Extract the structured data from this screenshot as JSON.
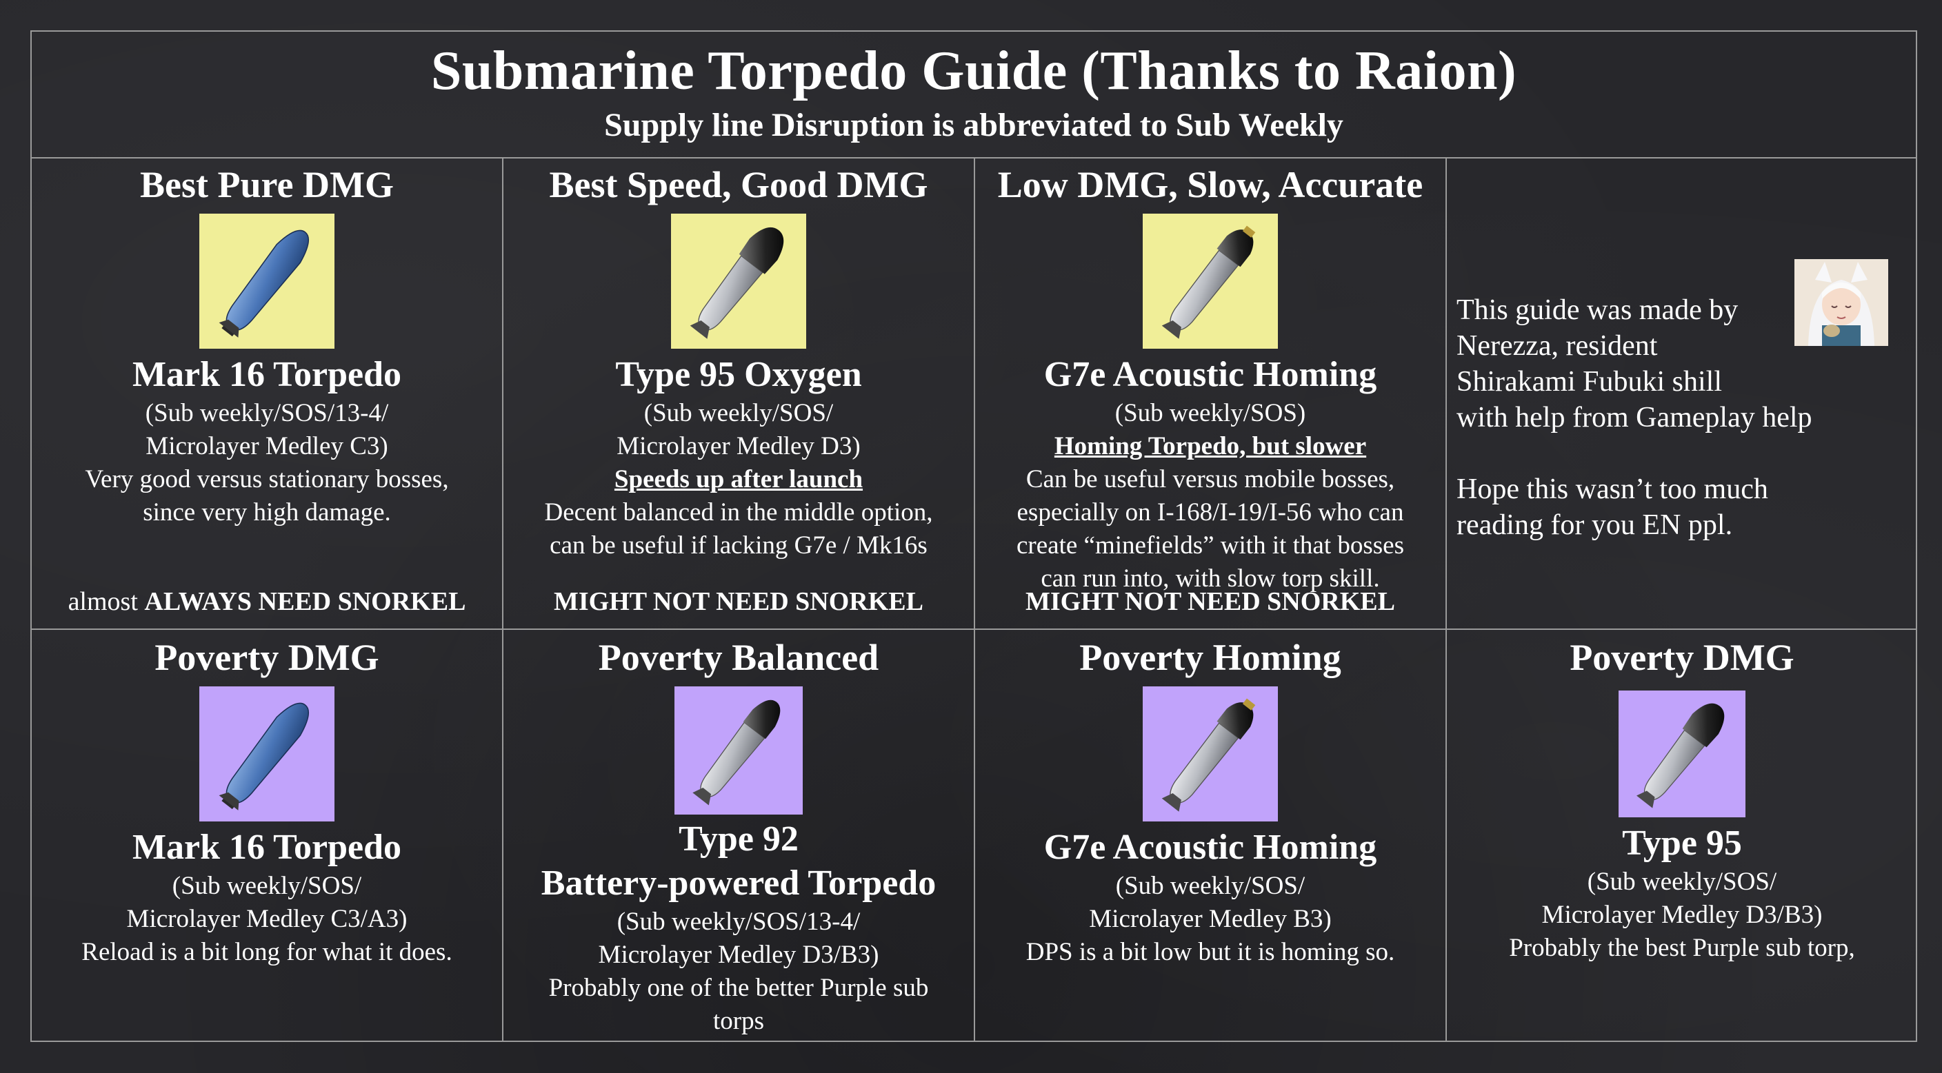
{
  "header": {
    "title": "Submarine Torpedo Guide (Thanks to Raion)",
    "subtitle": "Supply line Disruption is abbreviated to Sub Weekly"
  },
  "top_row": [
    {
      "heading": "Best Pure DMG",
      "image": "mark16-torpedo-icon",
      "name": "Mark 16 Torpedo",
      "lines": [
        "(Sub weekly/SOS/13-4/",
        "Microlayer Medley C3)",
        "Very good versus stationary bosses,",
        "since very high damage."
      ],
      "snorkel_prefix": "almost ",
      "snorkel": "ALWAYS NEED SNORKEL"
    },
    {
      "heading": "Best Speed, Good DMG",
      "image": "type95-oxygen-torpedo-icon",
      "name": "Type 95 Oxygen",
      "lines": [
        "(Sub weekly/SOS/",
        "Microlayer Medley D3)"
      ],
      "underlined": "Speeds up after launch",
      "lines2": [
        "Decent balanced in the middle option,",
        "can be useful if lacking G7e / Mk16s"
      ],
      "snorkel": "MIGHT NOT NEED SNORKEL"
    },
    {
      "heading": "Low DMG, Slow, Accurate",
      "image": "g7e-acoustic-homing-torpedo-icon",
      "name": "G7e Acoustic Homing",
      "lines": [
        "(Sub weekly/SOS)"
      ],
      "underlined": "Homing Torpedo, but slower",
      "lines2": [
        "Can be useful versus mobile bosses,",
        "especially on I-168/I-19/I-56 who can",
        "create “minefields” with it that bosses",
        "can run into, with slow torp skill."
      ],
      "snorkel": "MIGHT NOT NEED SNORKEL"
    }
  ],
  "note": {
    "lines": [
      "This guide was made by",
      "Nerezza, resident",
      "Shirakami Fubuki shill",
      "with help from Gameplay help"
    ],
    "lines2": [
      "Hope this wasn’t too much",
      "reading for you EN ppl."
    ]
  },
  "bottom_row": [
    {
      "heading": "Poverty DMG",
      "image": "mark16-torpedo-icon",
      "name_lines": [
        "Mark 16 Torpedo"
      ],
      "lines": [
        "(Sub weekly/SOS/",
        "Microlayer Medley C3/A3)",
        "Reload is a bit long for what it does."
      ]
    },
    {
      "heading": "Poverty Balanced",
      "image": "type92-battery-torpedo-icon",
      "name_lines": [
        "Type 92",
        "Battery-powered Torpedo"
      ],
      "lines": [
        "(Sub weekly/SOS/13-4/",
        "Microlayer Medley D3/B3)",
        "Probably one of the better Purple sub",
        "torps"
      ]
    },
    {
      "heading": "Poverty Homing",
      "image": "g7e-acoustic-homing-torpedo-icon",
      "name_lines": [
        "G7e Acoustic Homing"
      ],
      "lines": [
        "(Sub weekly/SOS/",
        "Microlayer Medley B3)",
        "DPS is a bit low but it is homing so."
      ]
    },
    {
      "heading": "Poverty DMG",
      "image": "type95-torpedo-icon",
      "name_lines": [
        "Type 95"
      ],
      "lines": [
        "(Sub weekly/SOS/",
        "Microlayer Medley D3/B3)",
        "Probably the best Purple sub torp,"
      ]
    }
  ],
  "colors": {
    "background": "#27272b",
    "grid_line": "#9a9a9a",
    "rare_tile": "#f0ee98",
    "elite_tile": "#c1a3fb",
    "blue_torpedo": "#4a76b8",
    "grey_torpedo": "#b9bcc2"
  }
}
